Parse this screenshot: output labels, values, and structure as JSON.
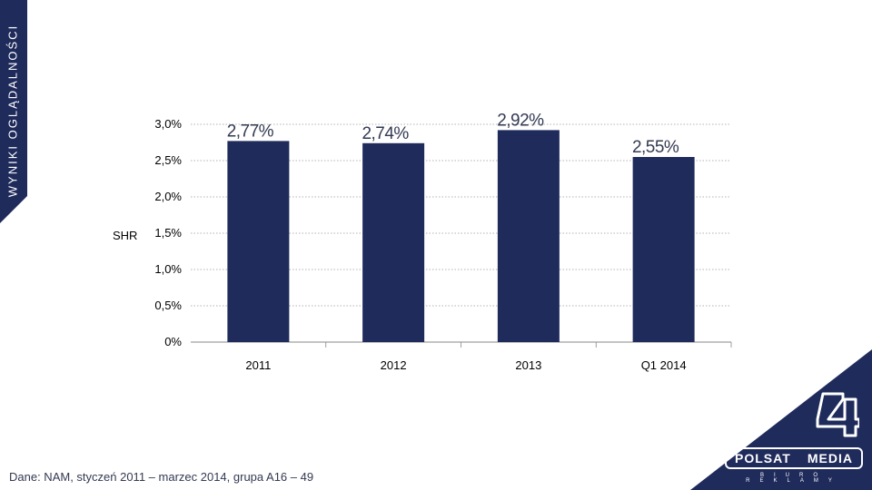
{
  "side_label": "WYNIKI OGLĄDALNOŚCI",
  "source_note": "Dane: NAM, styczeń 2011 – marzec 2014, grupa A16 – 49",
  "brand": {
    "name_left": "POLSAT",
    "name_right": "MEDIA",
    "subtitle": "BIURO REKLAMY",
    "logo_icon": "channel-4-logo-icon"
  },
  "colors": {
    "bar": "#1f2b5b",
    "navy": "#1f2b5b",
    "grid": "#9a9a9a"
  },
  "chart_data": {
    "type": "bar",
    "title": "",
    "xlabel": "",
    "ylabel": "SHR",
    "categories": [
      "2011",
      "2012",
      "2013",
      "Q1 2014"
    ],
    "values": [
      2.77,
      2.74,
      2.92,
      2.55
    ],
    "value_labels": [
      "2,77%",
      "2,74%",
      "2,92%",
      "2,55%"
    ],
    "ylim": [
      0,
      3.0
    ],
    "yticks": [
      0,
      0.5,
      1.0,
      1.5,
      2.0,
      2.5,
      3.0
    ],
    "ytick_labels": [
      "0%",
      "0,5%",
      "1,0%",
      "1,5%",
      "2,0%",
      "2,5%",
      "3,0%"
    ],
    "grid": true
  }
}
